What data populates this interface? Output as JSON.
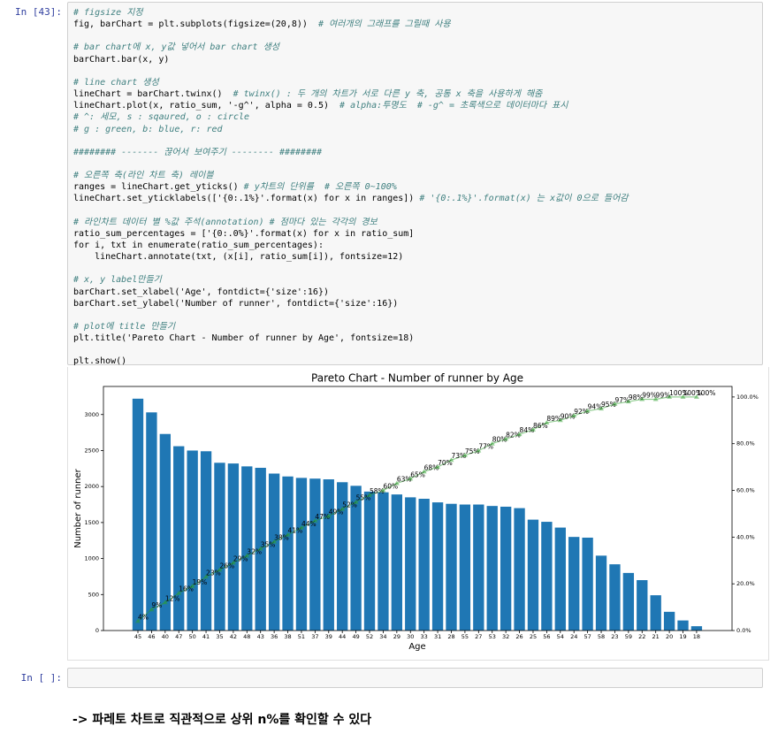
{
  "cells": [
    {
      "prompt": "In [43]:",
      "code": [
        [
          "# figsize 지정",
          "fig, barChart = plt.subplots(figsize=(20,8))  # 여러개의 그래프를 그릴때 사용"
        ],
        [
          "# bar chart에 x, y값 넣어서 bar chart 생성",
          "barChart.bar(x, y)"
        ],
        [
          "# line chart 생성",
          "lineChart = barChart.twinx()  # twinx() : 두 개의 차트가 서로 다른 y 축, 공통 x 축을 사용하게 해줌",
          "lineChart.plot(x, ratio_sum, '-g^', alpha = 0.5)  # alpha:투명도  # -g^ = 초록색으로 데이터마다 표시",
          "# ^: 세모, s : sqaured, o : circle",
          "# g : green, b: blue, r: red"
        ],
        [
          "######## ------- 끊어서 보여주기 -------- ########"
        ],
        [
          "# 오른쪽 축(라인 차트 축) 레이블",
          "ranges = lineChart.get_yticks() # y차트의 단위를  # 오른쪽 0~100%",
          "lineChart.set_yticklabels(['{0:.1%}'.format(x) for x in ranges]) # '{0:.1%}'.format(x) 는 x값이 0으로 들어감"
        ],
        [
          "# 라인차트 데이터 별 %값 주석(annotation) # 점마다 있는 각각의 경보",
          "ratio_sum_percentages = ['{0:.0%}'.format(x) for x in ratio_sum]",
          "for i, txt in enumerate(ratio_sum_percentages):",
          "    lineChart.annotate(txt, (x[i], ratio_sum[i]), fontsize=12)"
        ],
        [
          "# x, y label만들기",
          "barChart.set_xlabel('Age', fontdict={'size':16})",
          "barChart.set_ylabel('Number of runner', fontdict={'size':16})"
        ],
        [
          "# plot에 title 만들기",
          "plt.title('Pareto Chart - Number of runner by Age', fontsize=18)"
        ],
        [
          "plt.show()"
        ]
      ]
    },
    {
      "prompt": "In [ ]:"
    }
  ],
  "markdown": "-> 파레토 차트로 직관적으로 상위 n%를 확인할 수 있다",
  "chart_data": {
    "type": "bar",
    "title": "Pareto Chart - Number of runner by Age",
    "xlabel": "Age",
    "ylabel": "Number of runner",
    "categories": [
      "45",
      "46",
      "40",
      "47",
      "50",
      "41",
      "35",
      "42",
      "48",
      "43",
      "36",
      "38",
      "51",
      "37",
      "39",
      "44",
      "49",
      "52",
      "34",
      "29",
      "30",
      "33",
      "31",
      "28",
      "55",
      "27",
      "53",
      "32",
      "26",
      "25",
      "56",
      "54",
      "24",
      "57",
      "58",
      "23",
      "59",
      "22",
      "21",
      "20",
      "19",
      "18"
    ],
    "series": [
      {
        "type": "bar",
        "color": "#1f77b4",
        "values": [
          3220,
          3030,
          2730,
          2560,
          2500,
          2490,
          2330,
          2320,
          2280,
          2260,
          2180,
          2140,
          2120,
          2110,
          2100,
          2060,
          2010,
          1930,
          1920,
          1890,
          1850,
          1830,
          1780,
          1760,
          1750,
          1750,
          1730,
          1720,
          1700,
          1540,
          1510,
          1430,
          1300,
          1290,
          1040,
          920,
          800,
          700,
          490,
          260,
          140,
          60
        ]
      },
      {
        "type": "line",
        "color": "#2ca02c",
        "axis": "y2",
        "values": [
          0.04,
          0.09,
          0.12,
          0.16,
          0.19,
          0.23,
          0.26,
          0.29,
          0.32,
          0.35,
          0.38,
          0.41,
          0.44,
          0.47,
          0.49,
          0.52,
          0.55,
          0.58,
          0.6,
          0.63,
          0.65,
          0.68,
          0.7,
          0.73,
          0.75,
          0.77,
          0.8,
          0.82,
          0.84,
          0.86,
          0.89,
          0.9,
          0.92,
          0.94,
          0.95,
          0.97,
          0.98,
          0.99,
          0.99,
          1.0,
          1.0,
          1.0
        ],
        "value_labels": [
          "4%",
          "9%",
          "12%",
          "16%",
          "19%",
          "23%",
          "26%",
          "29%",
          "32%",
          "35%",
          "38%",
          "41%",
          "44%",
          "47%",
          "49%",
          "52%",
          "55%",
          "58%",
          "60%",
          "63%",
          "65%",
          "68%",
          "70%",
          "73%",
          "75%",
          "77%",
          "80%",
          "82%",
          "84%",
          "86%",
          "89%",
          "90%",
          "92%",
          "94%",
          "95%",
          "97%",
          "98%",
          "99%",
          "99%",
          "100%",
          "100%",
          "100%"
        ]
      }
    ],
    "ylim": [
      0,
      3390
    ],
    "yticks": [
      0,
      500,
      1000,
      1500,
      2000,
      2500,
      3000
    ],
    "y2lim": [
      0,
      1.045
    ],
    "y2ticks": [
      {
        "value": 0,
        "label": "0.0%"
      },
      {
        "value": 0.2,
        "label": "20.0%"
      },
      {
        "value": 0.4,
        "label": "40.0%"
      },
      {
        "value": 0.6,
        "label": "60.0%"
      },
      {
        "value": 0.8,
        "label": "80.0%"
      },
      {
        "value": 1.0,
        "label": "100.0%"
      }
    ]
  }
}
